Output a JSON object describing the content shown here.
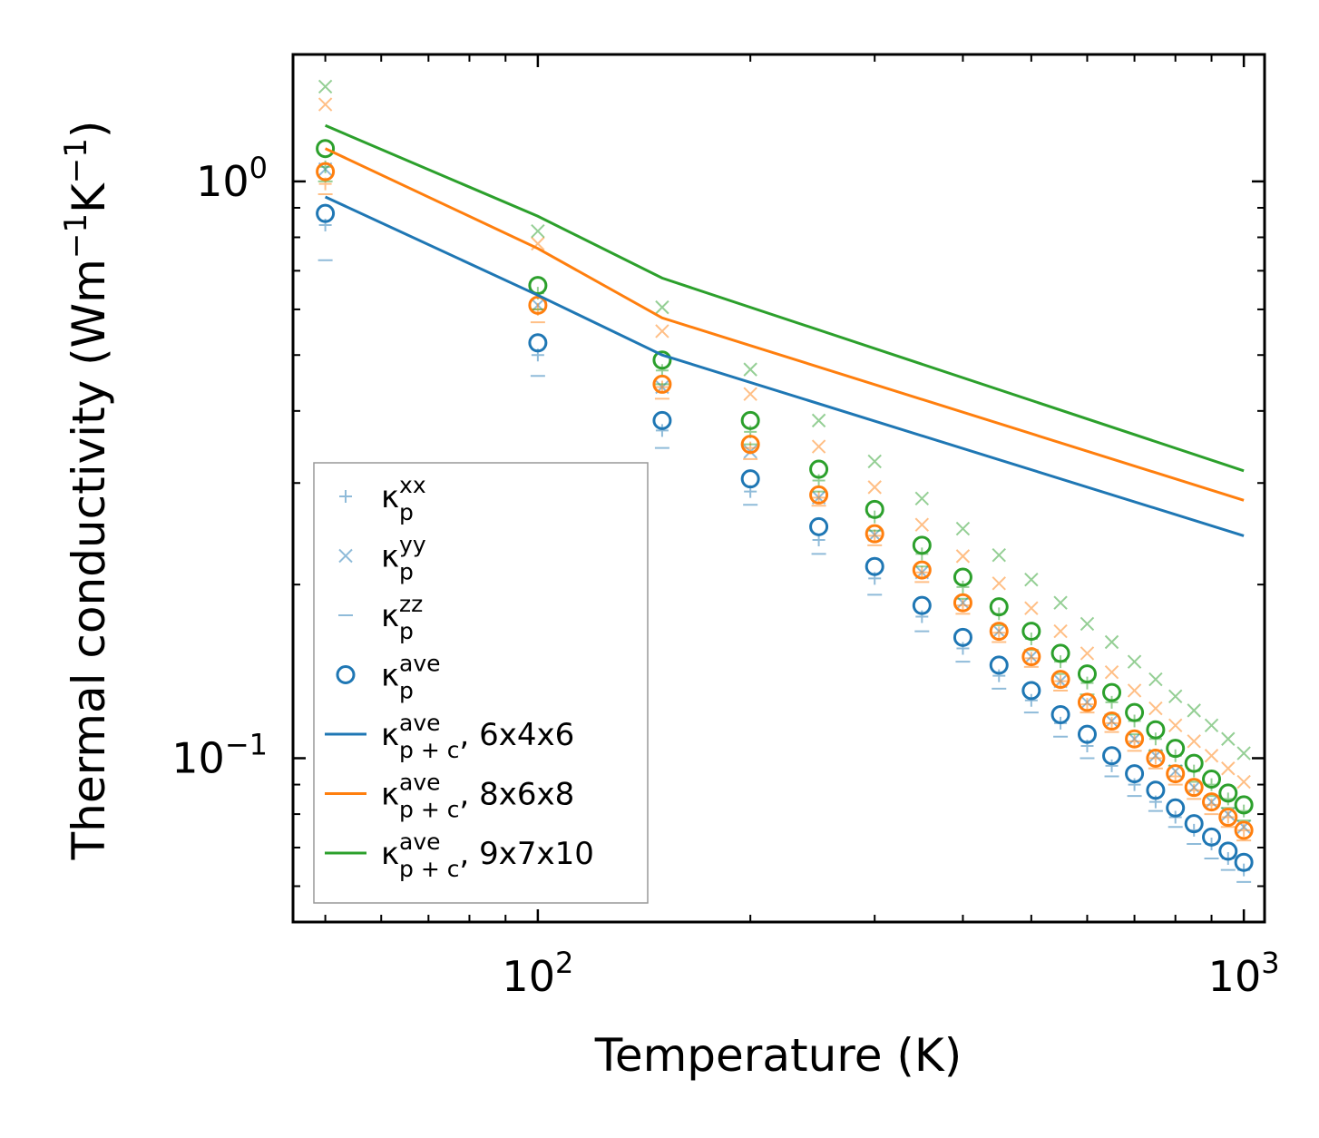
{
  "chart_data": {
    "type": "scatter",
    "xscale": "log",
    "yscale": "log",
    "xlabel": "Temperature (K)",
    "ylabel": {
      "main": "Thermal conductivity (Wm",
      "sup1": "−1",
      "mid": "K",
      "sup2": "−1",
      "end": ")"
    },
    "xlim": [
      45,
      1070
    ],
    "ylim": [
      0.052,
      1.66
    ],
    "xticks": [
      {
        "base": "10",
        "exp": "2",
        "value": 100
      },
      {
        "base": "10",
        "exp": "3",
        "value": 1000
      }
    ],
    "yticks": [
      {
        "base": "10",
        "exp": "0",
        "value": 1.0
      },
      {
        "base": "10",
        "exp": "−1",
        "value": 0.1
      }
    ],
    "minor_x": [
      50,
      60,
      70,
      80,
      90,
      200,
      300,
      400,
      500,
      600,
      700,
      800,
      900
    ],
    "minor_y": [
      0.06,
      0.07,
      0.08,
      0.09,
      0.2,
      0.3,
      0.4,
      0.5,
      0.6,
      0.7,
      0.8,
      0.9
    ],
    "x": [
      50,
      100,
      150,
      200,
      250,
      300,
      350,
      400,
      450,
      500,
      550,
      600,
      650,
      700,
      750,
      800,
      850,
      900,
      950,
      1000
    ],
    "grids": [
      {
        "name": "6x4x6",
        "color": "#1f77b4",
        "kxx": [
          0.84,
          0.5,
          0.37,
          0.29,
          0.239,
          0.205,
          0.176,
          0.155,
          0.139,
          0.126,
          0.115,
          0.105,
          0.097,
          0.09,
          0.084,
          0.079,
          0.075,
          0.071,
          0.067,
          0.064
        ],
        "kyy": [
          1.05,
          0.61,
          0.44,
          0.34,
          0.283,
          0.244,
          0.21,
          0.186,
          0.166,
          0.15,
          0.136,
          0.125,
          0.116,
          0.108,
          0.101,
          0.095,
          0.089,
          0.084,
          0.08,
          0.076
        ],
        "kzz": [
          0.73,
          0.46,
          0.345,
          0.275,
          0.226,
          0.192,
          0.166,
          0.147,
          0.132,
          0.12,
          0.109,
          0.1,
          0.093,
          0.086,
          0.081,
          0.076,
          0.071,
          0.067,
          0.064,
          0.061
        ],
        "kave": [
          0.88,
          0.525,
          0.385,
          0.305,
          0.252,
          0.215,
          0.184,
          0.162,
          0.145,
          0.131,
          0.119,
          0.11,
          0.101,
          0.094,
          0.088,
          0.082,
          0.077,
          0.073,
          0.069,
          0.066
        ],
        "kpc": [
          0.94,
          0.635,
          0.5,
          0.243
        ]
      },
      {
        "name": "8x6x8",
        "color": "#ff7f0e",
        "kxx": [
          0.99,
          0.6,
          0.44,
          0.345,
          0.283,
          0.243,
          0.21,
          0.184,
          0.165,
          0.149,
          0.136,
          0.124,
          0.115,
          0.107,
          0.1,
          0.093,
          0.088,
          0.083,
          0.079,
          0.075
        ],
        "kyy": [
          1.36,
          0.78,
          0.55,
          0.428,
          0.347,
          0.295,
          0.254,
          0.224,
          0.201,
          0.182,
          0.166,
          0.152,
          0.141,
          0.131,
          0.122,
          0.114,
          0.107,
          0.101,
          0.096,
          0.091
        ],
        "kzz": [
          0.95,
          0.57,
          0.42,
          0.33,
          0.274,
          0.234,
          0.202,
          0.178,
          0.159,
          0.144,
          0.131,
          0.12,
          0.111,
          0.103,
          0.096,
          0.09,
          0.085,
          0.08,
          0.076,
          0.072
        ],
        "kave": [
          1.04,
          0.61,
          0.445,
          0.35,
          0.286,
          0.245,
          0.212,
          0.186,
          0.166,
          0.15,
          0.137,
          0.125,
          0.116,
          0.108,
          0.1,
          0.094,
          0.089,
          0.084,
          0.079,
          0.075
        ],
        "kpc": [
          1.14,
          0.765,
          0.58,
          0.28
        ]
      },
      {
        "name": "9x7x10",
        "color": "#2ca02c",
        "kxx": [
          1.06,
          0.64,
          0.47,
          0.368,
          0.303,
          0.262,
          0.226,
          0.198,
          0.178,
          0.161,
          0.147,
          0.135,
          0.125,
          0.116,
          0.108,
          0.101,
          0.095,
          0.09,
          0.085,
          0.081
        ],
        "kyy": [
          1.46,
          0.82,
          0.605,
          0.472,
          0.385,
          0.327,
          0.282,
          0.25,
          0.225,
          0.204,
          0.186,
          0.171,
          0.159,
          0.147,
          0.137,
          0.128,
          0.121,
          0.114,
          0.108,
          0.102
        ],
        "kzz": [
          1.0,
          0.6,
          0.445,
          0.35,
          0.29,
          0.248,
          0.215,
          0.189,
          0.17,
          0.154,
          0.14,
          0.129,
          0.119,
          0.11,
          0.103,
          0.097,
          0.091,
          0.086,
          0.082,
          0.078
        ],
        "kave": [
          1.14,
          0.66,
          0.49,
          0.385,
          0.317,
          0.27,
          0.234,
          0.206,
          0.183,
          0.166,
          0.152,
          0.14,
          0.13,
          0.12,
          0.112,
          0.104,
          0.098,
          0.092,
          0.087,
          0.083
        ],
        "kpc": [
          1.25,
          0.87,
          0.68,
          0.315
        ]
      }
    ],
    "kpc_x": [
      50,
      100,
      150,
      1000
    ],
    "legend": {
      "placement": "lower-left",
      "entries": [
        {
          "marker": "plus",
          "base": "κ",
          "sub": "p",
          "sup": "xx",
          "suffix": ""
        },
        {
          "marker": "x",
          "base": "κ",
          "sub": "p",
          "sup": "yy",
          "suffix": ""
        },
        {
          "marker": "dash",
          "base": "κ",
          "sub": "p",
          "sup": "zz",
          "suffix": ""
        },
        {
          "marker": "circle",
          "base": "κ",
          "sub": "p",
          "sup": "ave",
          "suffix": ""
        },
        {
          "marker": "line",
          "color": "#1f77b4",
          "base": "κ",
          "sub": "p + c",
          "sup": "ave",
          "suffix": ", 6x4x6"
        },
        {
          "marker": "line",
          "color": "#ff7f0e",
          "base": "κ",
          "sub": "p + c",
          "sup": "ave",
          "suffix": ", 8x6x8"
        },
        {
          "marker": "line",
          "color": "#2ca02c",
          "base": "κ",
          "sub": "p + c",
          "sup": "ave",
          "suffix": ", 9x7x10"
        }
      ]
    }
  }
}
